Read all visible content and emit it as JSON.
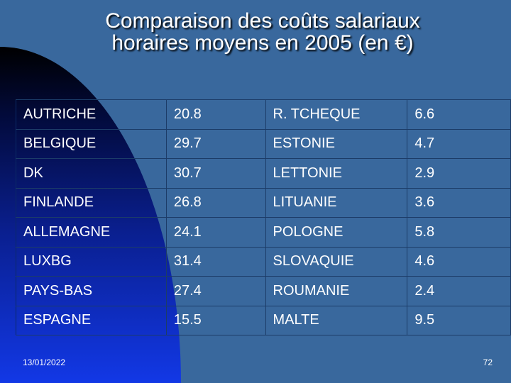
{
  "title": {
    "line1": "Comparaison des coûts salariaux",
    "line2": "horaires moyens en 2005 (en €)"
  },
  "table": {
    "rows": [
      [
        "AUTRICHE",
        "20.8",
        "R. TCHEQUE",
        "6.6"
      ],
      [
        "BELGIQUE",
        "29.7",
        "ESTONIE",
        "4.7"
      ],
      [
        "DK",
        "30.7",
        "LETTONIE",
        "2.9"
      ],
      [
        "FINLANDE",
        "26.8",
        "LITUANIE",
        "3.6"
      ],
      [
        "ALLEMAGNE",
        "24.1",
        "POLOGNE",
        "5.8"
      ],
      [
        "LUXBG",
        "31.4",
        "SLOVAQUIE",
        "4.6"
      ],
      [
        "PAYS-BAS",
        "27.4",
        "ROUMANIE",
        "2.4"
      ],
      [
        "ESPAGNE",
        "15.5",
        "MALTE",
        "9.5"
      ]
    ]
  },
  "footer": {
    "date": "13/01/2022",
    "page": "72"
  },
  "colors": {
    "background": "#39689d",
    "text": "#ffffff",
    "gradient_dark": "#000000",
    "gradient_blue": "#1238e6"
  }
}
